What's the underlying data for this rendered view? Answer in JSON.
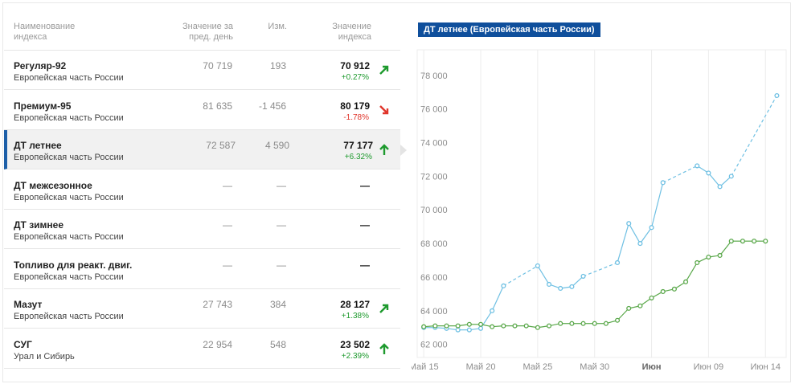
{
  "table": {
    "header": [
      "Наименование индекса",
      "Значение за пред. день",
      "Изм.",
      "Значение индекса"
    ],
    "rows": [
      {
        "name": "Регуляр-92",
        "region": "Европейская часть России",
        "prev": "70 719",
        "change": "193",
        "value": "70 912",
        "pct": "+0.27%"
      },
      {
        "name": "Премиум-95",
        "region": "Европейская часть России",
        "prev": "81 635",
        "change": "-1 456",
        "value": "80 179",
        "pct": "-1.78%"
      },
      {
        "name": "ДТ летнее",
        "region": "Европейская часть России",
        "prev": "72 587",
        "change": "4 590",
        "value": "77 177",
        "pct": "+6.32%"
      },
      {
        "name": "ДТ межсезонное",
        "region": "Европейская часть России",
        "prev": "—",
        "change": "—",
        "value": "—"
      },
      {
        "name": "ДТ зимнее",
        "region": "Европейская часть России",
        "prev": "—",
        "change": "—",
        "value": "—"
      },
      {
        "name": "Топливо для реакт. двиг.",
        "region": "Европейская часть России",
        "prev": "—",
        "change": "—",
        "value": "—"
      },
      {
        "name": "Мазут",
        "region": "Европейская часть России",
        "prev": "27 743",
        "change": "384",
        "value": "28 127",
        "pct": "+1.38%"
      },
      {
        "name": "СУГ",
        "region": "Урал и Сибирь",
        "prev": "22 954",
        "change": "548",
        "value": "23 502",
        "pct": "+2.39%"
      }
    ]
  },
  "chart_data": {
    "type": "line",
    "title": "ДТ летнее (Европейская часть России)",
    "xlim": [
      "05-14",
      "06-16"
    ],
    "xticks": [
      {
        "value": "05-15",
        "label": "Май 15"
      },
      {
        "value": "05-20",
        "label": "Май 20"
      },
      {
        "value": "05-25",
        "label": "Май 25"
      },
      {
        "value": "05-30",
        "label": "Май 30"
      },
      {
        "value": "06-04",
        "label": "Июн"
      },
      {
        "value": "06-09",
        "label": "Июн 09"
      },
      {
        "value": "06-14",
        "label": "Июн 14"
      }
    ],
    "ylim": [
      61600,
      79900
    ],
    "yticks": [
      {
        "value": 62000,
        "label": "62 000"
      },
      {
        "value": 64000,
        "label": "64 000"
      },
      {
        "value": 66000,
        "label": "66 000"
      },
      {
        "value": 68000,
        "label": "68 000"
      },
      {
        "value": 70000,
        "label": "70 000"
      },
      {
        "value": 72000,
        "label": "72 000"
      },
      {
        "value": 74000,
        "label": "74 000"
      },
      {
        "value": 76000,
        "label": "76 000"
      },
      {
        "value": 78000,
        "label": "78 000"
      }
    ],
    "grid": "x",
    "series": [
      {
        "color": "#6fc0e3",
        "x": [
          "05-15",
          "05-16",
          "05-17",
          "05-18",
          "05-19",
          "05-20",
          "05-21",
          "05-22",
          "05-25",
          "05-26",
          "05-27",
          "05-28",
          "05-29",
          "06-01",
          "06-02",
          "06-03",
          "06-04",
          "06-05",
          "06-08",
          "06-09",
          "06-10",
          "06-11",
          "06-15"
        ],
        "values": [
          63380,
          63380,
          63330,
          63240,
          63240,
          63330,
          64380,
          65860,
          67050,
          65950,
          65710,
          65810,
          66430,
          67240,
          69570,
          68380,
          69330,
          72000,
          73000,
          72570,
          71760,
          72380,
          77177
        ]
      },
      {
        "color": "#5aa84a",
        "x": [
          "05-15",
          "05-16",
          "05-17",
          "05-18",
          "05-19",
          "05-20",
          "05-21",
          "05-22",
          "05-23",
          "05-24",
          "05-25",
          "05-26",
          "05-27",
          "05-28",
          "05-29",
          "05-30",
          "05-31",
          "06-01",
          "06-02",
          "06-03",
          "06-04",
          "06-05",
          "06-06",
          "06-07",
          "06-08",
          "06-09",
          "06-10",
          "06-11",
          "06-12",
          "06-13",
          "06-14"
        ],
        "values": [
          63430,
          63480,
          63480,
          63480,
          63570,
          63570,
          63430,
          63480,
          63480,
          63480,
          63380,
          63480,
          63620,
          63620,
          63620,
          63620,
          63620,
          63810,
          64520,
          64670,
          65140,
          65520,
          65670,
          66100,
          67240,
          67570,
          67670,
          68520,
          68520,
          68520,
          68520
        ]
      }
    ]
  }
}
